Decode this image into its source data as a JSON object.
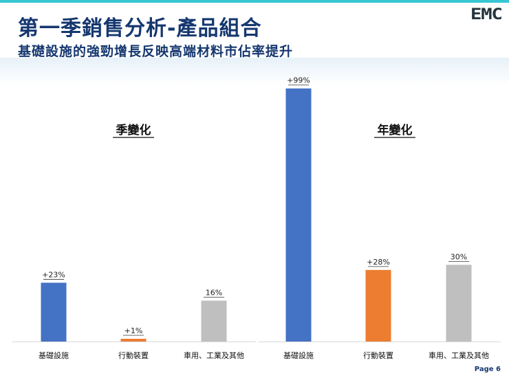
{
  "header": {
    "title": "第一季銷售分析-產品組合",
    "subtitle": "基礎設施的強勁增長反映高端材料市佔率提升",
    "logo_text": "EMC"
  },
  "footer": {
    "page_label": "Page 6"
  },
  "chart_data": [
    {
      "type": "bar",
      "title": "季變化",
      "categories": [
        "基礎設施",
        "行動裝置",
        "車用、工業及其他"
      ],
      "values": [
        23,
        1,
        16
      ],
      "value_labels": [
        "+23%",
        "+1%",
        "16%"
      ],
      "colors": [
        "#4472c4",
        "#ed7d31",
        "#bfbfbf"
      ],
      "ylim": [
        0,
        100
      ],
      "unit": "%",
      "grid": false,
      "legend": "none"
    },
    {
      "type": "bar",
      "title": "年變化",
      "categories": [
        "基礎設施",
        "行動裝置",
        "車用、工業及其他"
      ],
      "values": [
        99,
        28,
        30
      ],
      "value_labels": [
        "+99%",
        "+28%",
        "30%"
      ],
      "colors": [
        "#4472c4",
        "#ed7d31",
        "#bfbfbf"
      ],
      "ylim": [
        0,
        100
      ],
      "unit": "%",
      "grid": false,
      "legend": "none"
    }
  ]
}
